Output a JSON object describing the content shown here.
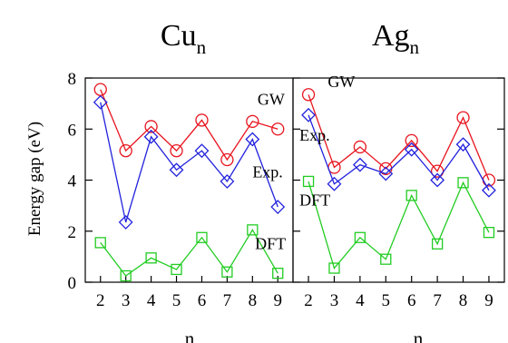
{
  "shared": {
    "ylabel": "Energy gap (eV)",
    "ylim": [
      0,
      8
    ],
    "yticks": [
      0,
      2,
      4,
      6,
      8
    ],
    "xticks": [
      2,
      3,
      4,
      5,
      6,
      7,
      8,
      9
    ],
    "xlim": [
      1.4,
      9.6
    ]
  },
  "chart_data": [
    {
      "type": "line",
      "title": "Cu",
      "title_subscript": "n",
      "xlabel": "n",
      "x": [
        2,
        3,
        4,
        5,
        6,
        7,
        8,
        9
      ],
      "series": [
        {
          "name": "GW",
          "color": "#e8141e",
          "marker": "circle",
          "values": [
            7.55,
            5.15,
            6.1,
            5.15,
            6.35,
            4.8,
            6.3,
            6.0
          ]
        },
        {
          "name": "Exp.",
          "color": "#2222dd",
          "marker": "diamond",
          "values": [
            7.05,
            2.35,
            5.7,
            4.4,
            5.15,
            3.95,
            5.6,
            2.95
          ]
        },
        {
          "name": "DFT",
          "color": "#22cc22",
          "marker": "square",
          "values": [
            1.55,
            0.25,
            0.95,
            0.5,
            1.75,
            0.4,
            2.05,
            0.35
          ]
        }
      ],
      "labels": [
        {
          "text": "GW",
          "series": 0,
          "x": 8.2,
          "y": 6.95
        },
        {
          "text": "Exp.",
          "series": 1,
          "x": 8.0,
          "y": 4.1
        },
        {
          "text": "DFT",
          "series": 2,
          "x": 8.1,
          "y": 1.3
        }
      ]
    },
    {
      "type": "line",
      "title": "Ag",
      "title_subscript": "n",
      "xlabel": "n",
      "x": [
        2,
        3,
        4,
        5,
        6,
        7,
        8,
        9
      ],
      "series": [
        {
          "name": "GW",
          "color": "#e8141e",
          "marker": "circle",
          "values": [
            7.35,
            4.5,
            5.3,
            4.45,
            5.55,
            4.35,
            6.45,
            4.0
          ]
        },
        {
          "name": "Exp.",
          "color": "#2222dd",
          "marker": "diamond",
          "values": [
            6.55,
            3.85,
            4.6,
            4.25,
            5.2,
            4.0,
            5.4,
            3.6
          ]
        },
        {
          "name": "DFT",
          "color": "#22cc22",
          "marker": "square",
          "values": [
            3.95,
            0.55,
            1.75,
            0.9,
            3.4,
            1.5,
            3.9,
            1.95
          ]
        }
      ],
      "labels": [
        {
          "text": "GW",
          "series": 0,
          "x": 2.75,
          "y": 7.65
        },
        {
          "text": "Exp.",
          "series": 1,
          "x": 1.65,
          "y": 5.55
        },
        {
          "text": "DFT",
          "series": 2,
          "x": 1.65,
          "y": 3.0
        }
      ]
    }
  ]
}
